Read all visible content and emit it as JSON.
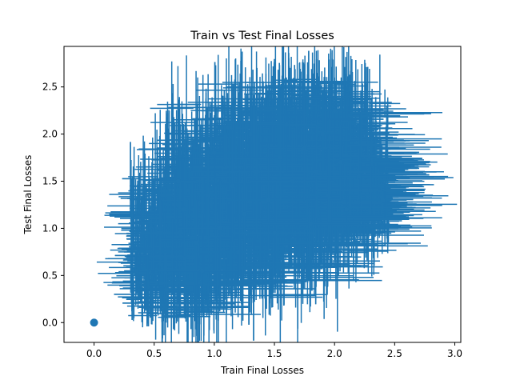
{
  "chart_data": {
    "type": "scatter",
    "title": "Train vs Test Final Losses",
    "xlabel": "Train Final Losses",
    "ylabel": "Test Final Losses",
    "xlim": [
      -0.25,
      3.05
    ],
    "ylim": [
      -0.21,
      2.93
    ],
    "xticks": [
      0.0,
      0.5,
      1.0,
      1.5,
      2.0,
      2.5,
      3.0
    ],
    "xtick_labels": [
      "0.0",
      "0.5",
      "1.0",
      "1.5",
      "2.0",
      "2.5",
      "3.0"
    ],
    "yticks": [
      0.0,
      0.5,
      1.0,
      1.5,
      2.0,
      2.5
    ],
    "ytick_labels": [
      "0.0",
      "0.5",
      "1.0",
      "1.5",
      "2.0",
      "2.5"
    ],
    "grid": false,
    "legend": "none",
    "color": "#1f77b4",
    "error_bars": true,
    "series": [
      {
        "points": [
          {
            "x": 0.0,
            "y": 0.0,
            "xerr": 0.0,
            "yerr": 0.0
          },
          {
            "x": 0.35,
            "y": 0.55,
            "xerr": 0.1,
            "yerr": 0.2
          },
          {
            "x": 0.45,
            "y": 0.75,
            "xerr": 0.25,
            "yerr": 0.3
          },
          {
            "x": 0.55,
            "y": 0.95,
            "xerr": 0.2,
            "yerr": 0.35
          },
          {
            "x": 0.65,
            "y": 0.7,
            "xerr": 0.2,
            "yerr": 0.4
          },
          {
            "x": 0.75,
            "y": 1.2,
            "xerr": 0.15,
            "yerr": 0.5
          },
          {
            "x": 0.85,
            "y": 0.85,
            "xerr": 0.3,
            "yerr": 0.45
          },
          {
            "x": 0.95,
            "y": 1.35,
            "xerr": 0.2,
            "yerr": 0.55
          },
          {
            "x": 1.05,
            "y": 1.0,
            "xerr": 0.35,
            "yerr": 0.5
          },
          {
            "x": 1.15,
            "y": 1.45,
            "xerr": 0.25,
            "yerr": 0.6
          },
          {
            "x": 1.25,
            "y": 1.15,
            "xerr": 0.3,
            "yerr": 0.55
          },
          {
            "x": 1.35,
            "y": 1.6,
            "xerr": 0.3,
            "yerr": 0.65
          },
          {
            "x": 1.45,
            "y": 1.3,
            "xerr": 0.35,
            "yerr": 0.6
          },
          {
            "x": 1.55,
            "y": 1.75,
            "xerr": 0.3,
            "yerr": 0.6
          },
          {
            "x": 1.65,
            "y": 1.5,
            "xerr": 0.35,
            "yerr": 0.55
          },
          {
            "x": 1.75,
            "y": 1.85,
            "xerr": 0.3,
            "yerr": 0.55
          },
          {
            "x": 1.85,
            "y": 1.6,
            "xerr": 0.45,
            "yerr": 0.5
          },
          {
            "x": 1.95,
            "y": 1.35,
            "xerr": 0.45,
            "yerr": 0.5
          },
          {
            "x": 2.05,
            "y": 1.7,
            "xerr": 0.5,
            "yerr": 0.4
          },
          {
            "x": 2.1,
            "y": 1.2,
            "xerr": 0.4,
            "yerr": 0.4
          },
          {
            "x": 2.2,
            "y": 1.55,
            "xerr": 0.4,
            "yerr": 0.3
          },
          {
            "x": 2.3,
            "y": 1.4,
            "xerr": 0.45,
            "yerr": 0.25
          },
          {
            "x": 2.4,
            "y": 1.3,
            "xerr": 0.2,
            "yerr": 0.1
          },
          {
            "x": 0.6,
            "y": 0.35,
            "xerr": 0.2,
            "yerr": 0.35
          },
          {
            "x": 0.9,
            "y": 0.55,
            "xerr": 0.3,
            "yerr": 0.4
          },
          {
            "x": 1.2,
            "y": 0.75,
            "xerr": 0.35,
            "yerr": 0.45
          },
          {
            "x": 1.5,
            "y": 0.95,
            "xerr": 0.35,
            "yerr": 0.45
          },
          {
            "x": 1.8,
            "y": 1.05,
            "xerr": 0.4,
            "yerr": 0.4
          },
          {
            "x": 0.7,
            "y": 1.5,
            "xerr": 0.15,
            "yerr": 0.35
          },
          {
            "x": 1.0,
            "y": 1.8,
            "xerr": 0.2,
            "yerr": 0.4
          },
          {
            "x": 1.3,
            "y": 2.0,
            "xerr": 0.25,
            "yerr": 0.45
          },
          {
            "x": 1.6,
            "y": 2.1,
            "xerr": 0.25,
            "yerr": 0.5
          },
          {
            "x": 1.9,
            "y": 2.0,
            "xerr": 0.25,
            "yerr": 0.45
          },
          {
            "x": 2.0,
            "y": 2.25,
            "xerr": 0.2,
            "yerr": 0.35
          }
        ]
      }
    ]
  }
}
